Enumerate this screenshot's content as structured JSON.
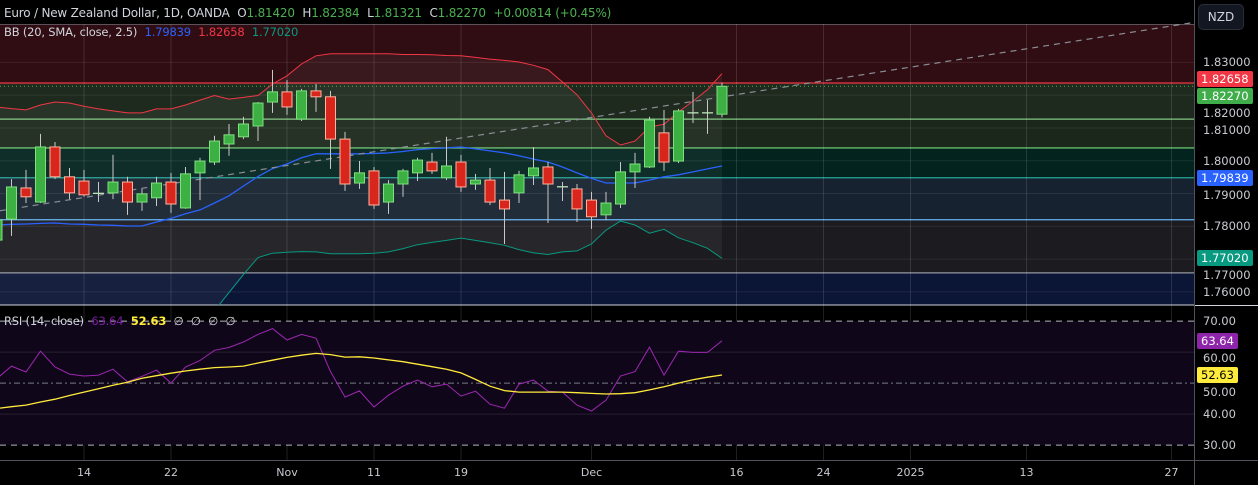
{
  "header": {
    "symbol": "Euro / New Zealand Dollar, 1D, OANDA",
    "o_label": "O",
    "o": "1.81420",
    "h_label": "H",
    "h": "1.82384",
    "l_label": "L",
    "l": "1.81321",
    "c_label": "C",
    "c": "1.82270",
    "change": "+0.00814 (+0.45%)"
  },
  "bb_legend": {
    "title": "BB (20, SMA, close, 2.5)",
    "basis": "1.79839",
    "upper": "1.82658",
    "lower": "1.77020"
  },
  "rsi_legend": {
    "title": "RSI (14, close)",
    "rsi": "63.64",
    "ma": "52.63",
    "extra": [
      "∅",
      "∅",
      "∅",
      "∅"
    ]
  },
  "currency_button": "NZD",
  "price_axis": {
    "ticks": [
      "1.83000",
      "1.82000",
      "1.81000",
      "1.80000",
      "1.79000",
      "1.78000",
      "1.77000",
      "1.76000"
    ],
    "badges": [
      {
        "text": "1.82658",
        "bg": "#f23645",
        "fg": "#ffffff"
      },
      {
        "text": "1.82270",
        "bg": "#3fae4a",
        "fg": "#ffffff"
      },
      {
        "text": "1.79839",
        "bg": "#2962ff",
        "fg": "#ffffff"
      },
      {
        "text": "1.77020",
        "bg": "#089981",
        "fg": "#ffffff"
      }
    ]
  },
  "rsi_axis": {
    "ticks": [
      "70.00",
      "60.00",
      "50.00",
      "40.00",
      "30.00"
    ],
    "badges": [
      {
        "text": "63.64",
        "bg": "#8e24aa",
        "fg": "#ffffff"
      },
      {
        "text": "52.63",
        "bg": "#ffeb3b",
        "fg": "#000000"
      }
    ]
  },
  "time_axis": {
    "ticks": [
      {
        "label": "14",
        "date": "2024-10-14"
      },
      {
        "label": "22",
        "date": "2024-10-22"
      },
      {
        "label": "Nov",
        "date": "2024-11-01"
      },
      {
        "label": "11",
        "date": "2024-11-11"
      },
      {
        "label": "19",
        "date": "2024-11-19"
      },
      {
        "label": "Dec",
        "date": "2024-12-02"
      },
      {
        "label": "16",
        "date": "2024-12-16"
      },
      {
        "label": "24",
        "date": "2024-12-24"
      },
      {
        "label": "2025",
        "date": "2025-01-01"
      },
      {
        "label": "13",
        "date": "2025-01-13"
      },
      {
        "label": "27",
        "date": "2025-01-27"
      }
    ]
  },
  "colors": {
    "up": "#3cb043",
    "up_border": "#7ee07e",
    "down": "#d9261c",
    "down_border": "#ffb4a0",
    "wick": "#c8c8c8",
    "bb_basis": "#2962ff",
    "bb_upper": "#f23645",
    "bb_lower": "#089981",
    "rsi": "#9c27b0",
    "rsi_ma": "#ffeb3b",
    "trendline": "#8a8d96"
  },
  "chart_data": [
    {
      "type": "candlestick",
      "ylim": [
        1.756,
        1.8417
      ],
      "grid": true,
      "dates": [
        "2024-10-04",
        "2024-10-07",
        "2024-10-08",
        "2024-10-09",
        "2024-10-10",
        "2024-10-11",
        "2024-10-14",
        "2024-10-15",
        "2024-10-16",
        "2024-10-17",
        "2024-10-18",
        "2024-10-21",
        "2024-10-22",
        "2024-10-23",
        "2024-10-24",
        "2024-10-25",
        "2024-10-28",
        "2024-10-29",
        "2024-10-30",
        "2024-10-31",
        "2024-11-01",
        "2024-11-04",
        "2024-11-05",
        "2024-11-06",
        "2024-11-07",
        "2024-11-08",
        "2024-11-11",
        "2024-11-12",
        "2024-11-13",
        "2024-11-14",
        "2024-11-15",
        "2024-11-18",
        "2024-11-19",
        "2024-11-20",
        "2024-11-21",
        "2024-11-22",
        "2024-11-25",
        "2024-11-26",
        "2024-11-27",
        "2024-11-28",
        "2024-11-29",
        "2024-12-02",
        "2024-12-03",
        "2024-12-04",
        "2024-12-05",
        "2024-12-06",
        "2024-12-09",
        "2024-12-10",
        "2024-12-11",
        "2024-12-12",
        "2024-12-13"
      ],
      "ohlc": [
        [
          1.7758,
          1.7835,
          1.7743,
          1.7819
        ],
        [
          1.7822,
          1.7944,
          1.7771,
          1.792
        ],
        [
          1.7917,
          1.7972,
          1.7871,
          1.789
        ],
        [
          1.7874,
          1.8082,
          1.7871,
          1.8042
        ],
        [
          1.8042,
          1.8057,
          1.7944,
          1.7951
        ],
        [
          1.7951,
          1.7978,
          1.7883,
          1.7902
        ],
        [
          1.7938,
          1.7972,
          1.789,
          1.7896
        ],
        [
          1.7899,
          1.7935,
          1.7874,
          1.7902
        ],
        [
          1.7902,
          1.8018,
          1.7883,
          1.7935
        ],
        [
          1.7935,
          1.7951,
          1.7835,
          1.7874
        ],
        [
          1.7874,
          1.7914,
          1.7847,
          1.7899
        ],
        [
          1.7887,
          1.7951,
          1.7862,
          1.7932
        ],
        [
          1.7935,
          1.7963,
          1.7841,
          1.7868
        ],
        [
          1.7856,
          1.7981,
          1.7853,
          1.796
        ],
        [
          1.7963,
          1.8009,
          1.788,
          1.7999
        ],
        [
          1.7996,
          1.8076,
          1.7987,
          1.806
        ],
        [
          1.8051,
          1.8112,
          1.8015,
          1.8079
        ],
        [
          1.8073,
          1.8134,
          1.8066,
          1.8112
        ],
        [
          1.8106,
          1.8179,
          1.806,
          1.8176
        ],
        [
          1.8179,
          1.8277,
          1.8146,
          1.821
        ],
        [
          1.821,
          1.8246,
          1.814,
          1.8164
        ],
        [
          1.8127,
          1.8219,
          1.8121,
          1.8213
        ],
        [
          1.8213,
          1.8234,
          1.8149,
          1.8195
        ],
        [
          1.8195,
          1.8213,
          1.7975,
          1.8066
        ],
        [
          1.8066,
          1.8088,
          1.7908,
          1.7929
        ],
        [
          1.7932,
          1.7999,
          1.7914,
          1.7963
        ],
        [
          1.7969,
          1.7981,
          1.7853,
          1.7865
        ],
        [
          1.7874,
          1.7941,
          1.7838,
          1.7929
        ],
        [
          1.7929,
          1.7975,
          1.789,
          1.7969
        ],
        [
          1.7963,
          1.8009,
          1.7938,
          1.8002
        ],
        [
          1.7996,
          1.8024,
          1.796,
          1.7969
        ],
        [
          1.7948,
          1.8073,
          1.7941,
          1.7984
        ],
        [
          1.7996,
          1.8018,
          1.7905,
          1.792
        ],
        [
          1.7929,
          1.796,
          1.7911,
          1.7941
        ],
        [
          1.7941,
          1.7978,
          1.7865,
          1.7874
        ],
        [
          1.788,
          1.7966,
          1.7746,
          1.7853
        ],
        [
          1.7902,
          1.7969,
          1.7871,
          1.7957
        ],
        [
          1.7954,
          1.8042,
          1.7926,
          1.7978
        ],
        [
          1.7981,
          1.7996,
          1.781,
          1.7929
        ],
        [
          1.792,
          1.7935,
          1.7877,
          1.7921
        ],
        [
          1.7914,
          1.7929,
          1.7813,
          1.7853
        ],
        [
          1.788,
          1.7905,
          1.7792,
          1.7829
        ],
        [
          1.7835,
          1.7905,
          1.7819,
          1.7871
        ],
        [
          1.7868,
          1.7996,
          1.7856,
          1.7966
        ],
        [
          1.7966,
          1.8024,
          1.7917,
          1.799
        ],
        [
          1.7981,
          1.8134,
          1.7978,
          1.8124
        ],
        [
          1.8085,
          1.8155,
          1.7969,
          1.7996
        ],
        [
          1.7999,
          1.8158,
          1.7993,
          1.8152
        ],
        [
          1.8145,
          1.821,
          1.8115,
          1.8147
        ],
        [
          1.8145,
          1.8185,
          1.8082,
          1.8147
        ],
        [
          1.8142,
          1.82384,
          1.81321,
          1.8227
        ]
      ],
      "bollinger": {
        "basis": [
          1.7804,
          1.7806,
          1.7807,
          1.7809,
          1.781,
          1.7807,
          1.7806,
          1.7804,
          1.7803,
          1.7801,
          1.7801,
          1.7813,
          1.7824,
          1.7838,
          1.785,
          1.7871,
          1.7893,
          1.7923,
          1.7952,
          1.7976,
          1.799,
          1.8009,
          1.8021,
          1.8021,
          1.8021,
          1.8021,
          1.8022,
          1.8024,
          1.8028,
          1.8034,
          1.8037,
          1.8039,
          1.8042,
          1.8036,
          1.803,
          1.8024,
          1.8015,
          1.8005,
          1.7996,
          1.7981,
          1.7963,
          1.7946,
          1.7932,
          1.7932,
          1.7932,
          1.7941,
          1.7951,
          1.7957,
          1.7966,
          1.7975,
          1.79839
        ],
        "upper": [
          1.8164,
          1.8159,
          1.8155,
          1.817,
          1.8179,
          1.8176,
          1.8166,
          1.8158,
          1.8152,
          1.8146,
          1.8146,
          1.8158,
          1.8158,
          1.817,
          1.8185,
          1.8199,
          1.8188,
          1.8193,
          1.8199,
          1.8234,
          1.8259,
          1.8295,
          1.832,
          1.8326,
          1.8326,
          1.8326,
          1.8326,
          1.8326,
          1.8324,
          1.8324,
          1.8323,
          1.8321,
          1.832,
          1.8315,
          1.831,
          1.8306,
          1.8301,
          1.8291,
          1.8278,
          1.824,
          1.8201,
          1.8146,
          1.8076,
          1.8048,
          1.806,
          1.8103,
          1.8111,
          1.8149,
          1.8182,
          1.8217,
          1.82658
        ],
        "lower": [
          1.7444,
          1.7453,
          1.7459,
          1.7448,
          1.7441,
          1.7438,
          1.7446,
          1.745,
          1.7454,
          1.7456,
          1.7456,
          1.7468,
          1.749,
          1.7506,
          1.7515,
          1.7543,
          1.7598,
          1.7653,
          1.7705,
          1.7718,
          1.7721,
          1.7723,
          1.7722,
          1.7716,
          1.7716,
          1.7716,
          1.7718,
          1.7722,
          1.7732,
          1.7744,
          1.7751,
          1.7757,
          1.7764,
          1.7757,
          1.775,
          1.7742,
          1.7729,
          1.7719,
          1.7714,
          1.7722,
          1.7725,
          1.7746,
          1.7788,
          1.7816,
          1.7804,
          1.7779,
          1.7791,
          1.7765,
          1.775,
          1.7733,
          1.7702
        ]
      },
      "trendline": {
        "from": {
          "date": "2024-10-07",
          "price": 1.7853
        },
        "to": {
          "date": "2025-01-27",
          "price": 1.8411
        },
        "style": "dashed"
      },
      "last_price_line": 1.8227,
      "levels": [
        {
          "price": 1.8417,
          "color": "#787b86",
          "zone_below": "#300d12"
        },
        {
          "price": 1.8237,
          "color": "#f23645",
          "zone_below": "#1e2a1e"
        },
        {
          "price": 1.8127,
          "color": "#81c784",
          "zone_below": "#1b271b"
        },
        {
          "price": 1.8039,
          "color": "#66bb6a",
          "zone_below": "#03231f"
        },
        {
          "price": 1.7948,
          "color": "#26a69a",
          "zone_below": "#16222f"
        },
        {
          "price": 1.782,
          "color": "#64b5f6",
          "zone_below": "#1c1b1f"
        },
        {
          "price": 1.7658,
          "color": "#9598a1",
          "zone_below": "#0b1535"
        }
      ]
    },
    {
      "type": "line",
      "ylim": [
        25.2,
        75.2
      ],
      "bands": {
        "upper": 70,
        "middle": 50,
        "lower": 30
      },
      "rsi": [
        51.5,
        55.5,
        53.6,
        60.3,
        55.2,
        52.9,
        52.3,
        52.6,
        54.5,
        50.4,
        52.2,
        54.2,
        50.0,
        55.2,
        57.3,
        60.6,
        61.5,
        63.3,
        65.7,
        67.6,
        63.9,
        65.7,
        64.5,
        53.7,
        45.5,
        47.5,
        42.3,
        46.1,
        49.0,
        51.0,
        48.8,
        49.7,
        45.8,
        47.4,
        43.2,
        41.9,
        49.7,
        51.0,
        47.4,
        47.1,
        42.9,
        41.0,
        44.5,
        52.3,
        53.7,
        61.6,
        52.6,
        60.3,
        59.9,
        59.9,
        63.64
      ],
      "rsi_ma": [
        41.8,
        42.4,
        42.9,
        43.9,
        44.8,
        46.0,
        47.1,
        48.2,
        49.3,
        50.3,
        51.6,
        52.4,
        53.2,
        53.9,
        54.5,
        55.0,
        55.2,
        55.5,
        56.5,
        57.4,
        58.3,
        59.0,
        59.6,
        59.2,
        58.4,
        58.5,
        58.1,
        57.5,
        56.9,
        56.1,
        55.3,
        54.5,
        53.3,
        51.2,
        49.0,
        47.6,
        47.1,
        47.1,
        47.1,
        47.1,
        46.9,
        46.7,
        46.5,
        46.6,
        46.9,
        47.8,
        48.8,
        50.0,
        51.1,
        51.9,
        52.63
      ]
    }
  ]
}
